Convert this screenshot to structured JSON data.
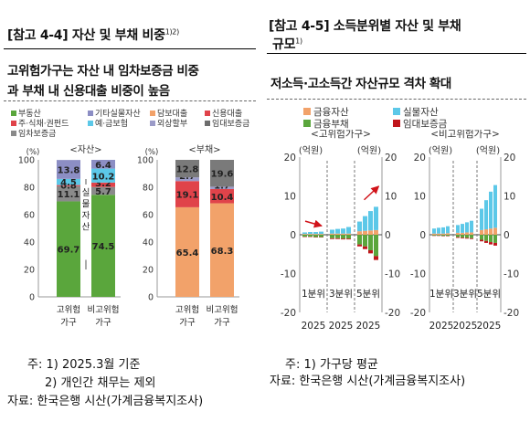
{
  "left": {
    "title_main": "[참고 4-4] 자산 및 부채 비중",
    "title_sup": "1)2)",
    "heading_line1": "고위험가구는 자산 내 임차보증금 비중",
    "heading_line2": "과 부채 내 신용대출 비중이 높음",
    "legend": [
      {
        "label": "부동산",
        "color": "#5aa63c"
      },
      {
        "label": "기타실물자산",
        "color": "#8c8ec4"
      },
      {
        "label": "주·식채·권펀드",
        "color": "#e0434a"
      },
      {
        "label": "예·금보험",
        "color": "#5cc8e8"
      },
      {
        "label": "임차보증금",
        "color": "#8a8a8a"
      },
      {
        "label": "담보대출",
        "color": "#f2a26a"
      },
      {
        "label": "신용대출",
        "color": "#e0434a"
      },
      {
        "label": "외상할부",
        "color": "#9b9bc8"
      },
      {
        "label": "임대보증금",
        "color": "#6d6d6d"
      }
    ],
    "notes": [
      "주: 1) 2025.3월 기준",
      "2) 개인간 채무는 제외",
      "자료: 한국은행 시산(가계금융복지조사)"
    ]
  },
  "right": {
    "title_main": "[참고 4-5] 소득분위별 자산 및 부채",
    "title_line2": "규모",
    "title_sup": "1)",
    "heading": "저소득·고소득간 자산규모 격차 확대",
    "legend": [
      {
        "label": "금융자산",
        "color": "#f2a26a"
      },
      {
        "label": "실물자산",
        "color": "#5cc8e8"
      },
      {
        "label": "금융부채",
        "color": "#5aa63c"
      },
      {
        "label": "임대보증금",
        "color": "#c0151b"
      }
    ],
    "notes": [
      "주: 1) 가구당 평균",
      "자료: 한국은행 시산(가계금융복지조사)"
    ]
  },
  "chart_data": [
    {
      "type": "bar",
      "stacked": true,
      "ylim": [
        0,
        100
      ],
      "yticks": [
        0,
        20,
        40,
        60,
        80,
        100
      ],
      "ylabel": "(%)",
      "group_label": "<자산>",
      "categories": [
        [
          "고위험",
          "가구"
        ],
        [
          "비고위험",
          "가구"
        ]
      ],
      "vertical_label": "실물자산",
      "series": [
        {
          "name": "부동산",
          "color": "#5aa63c",
          "values": [
            69.7,
            74.5
          ]
        },
        {
          "name": "임차보증금",
          "color": "#8a8a8a",
          "values": [
            11.1,
            5.7
          ]
        },
        {
          "name": "주·식채·권펀드",
          "color": "#e0434a",
          "values": [
            0.8,
            3.2
          ]
        },
        {
          "name": "예·금보험",
          "color": "#5cc8e8",
          "values": [
            4.5,
            10.2
          ]
        },
        {
          "name": "기타실물자산",
          "color": "#8c8ec4",
          "values": [
            13.8,
            6.4
          ]
        }
      ],
      "value_labels": [
        [
          "69.7",
          "11.1",
          "0.8",
          "4.5",
          "13.8"
        ],
        [
          "74.5",
          "5.7",
          "3.2",
          "10.2",
          "6.4"
        ]
      ]
    },
    {
      "type": "bar",
      "stacked": true,
      "ylim": [
        0,
        100
      ],
      "yticks": [
        0,
        20,
        40,
        60,
        80,
        100
      ],
      "ylabel": "(%)",
      "group_label": "<부채>",
      "categories": [
        [
          "고위험",
          "가구"
        ],
        [
          "비고위험",
          "가구"
        ]
      ],
      "series": [
        {
          "name": "담보대출",
          "color": "#f2a26a",
          "values": [
            65.4,
            68.3
          ]
        },
        {
          "name": "신용대출",
          "color": "#e0434a",
          "values": [
            19.1,
            10.4
          ]
        },
        {
          "name": "외상할부",
          "color": "#9b9bc8",
          "values": [
            2.7,
            1.7
          ]
        },
        {
          "name": "임대보증금",
          "color": "#7a7a7a",
          "values": [
            12.8,
            19.6
          ]
        }
      ],
      "value_labels": [
        [
          "65.4",
          "19.1",
          "2.7",
          "12.8"
        ],
        [
          "68.3",
          "10.4",
          "1.7",
          "19.6"
        ]
      ]
    },
    {
      "type": "bar",
      "stacked": true,
      "group_label": "<고위험가구>",
      "ylabel_left": "(억원)",
      "ylabel_right": "(억원)",
      "ylim": [
        -20,
        20
      ],
      "yticks": [
        -20,
        -10,
        0,
        10,
        20
      ],
      "right_ticks": [
        "20",
        "10",
        "0",
        "-10",
        "-20"
      ],
      "quintile_labels": [
        "1분위",
        "3분위",
        "5분위"
      ],
      "year_labels": [
        "2025",
        "2025",
        "2025"
      ],
      "arrows": true,
      "quintiles": [
        {
          "name": "1분위",
          "financial_assets": [
            0.2,
            0.2,
            0.2,
            0.2
          ],
          "real_assets": [
            0.4,
            0.5,
            0.5,
            0.6
          ],
          "financial_debt": [
            -0.5,
            -0.5,
            -0.6,
            -0.6
          ],
          "rental_deposit": [
            -0.1,
            -0.1,
            -0.1,
            -0.1
          ]
        },
        {
          "name": "3분위",
          "financial_assets": [
            0.3,
            0.3,
            0.3,
            0.3
          ],
          "real_assets": [
            1.0,
            1.2,
            1.3,
            1.7
          ],
          "financial_debt": [
            -0.9,
            -0.9,
            -1.0,
            -1.0
          ],
          "rental_deposit": [
            -0.2,
            -0.2,
            -0.2,
            -0.2
          ]
        },
        {
          "name": "5분위",
          "financial_assets": [
            0.9,
            1.0,
            1.1,
            1.2
          ],
          "real_assets": [
            2.5,
            3.8,
            5.0,
            6.0
          ],
          "financial_debt": [
            -2.5,
            -3.0,
            -4.0,
            -5.5
          ],
          "rental_deposit": [
            -0.5,
            -0.7,
            -0.8,
            -1.0
          ]
        }
      ]
    },
    {
      "type": "bar",
      "stacked": true,
      "group_label": "<비고위험가구>",
      "ylabel_left": "(억원)",
      "ylabel_right": "(억원)",
      "ylim": [
        -20,
        20
      ],
      "yticks": [
        -20,
        -10,
        0,
        10,
        20
      ],
      "right_ticks": [
        "20",
        "10",
        "0",
        "-10",
        "-20"
      ],
      "quintile_labels": [
        "1분위",
        "3분위",
        "5분위"
      ],
      "year_labels": [
        "2025",
        "2025",
        "2025"
      ],
      "quintiles": [
        {
          "name": "1분위",
          "financial_assets": [
            0.3,
            0.3,
            0.3,
            0.4
          ],
          "real_assets": [
            1.3,
            1.5,
            1.6,
            1.8
          ],
          "financial_debt": [
            -0.2,
            -0.2,
            -0.3,
            -0.3
          ],
          "rental_deposit": [
            -0.1,
            -0.1,
            -0.1,
            -0.1
          ]
        },
        {
          "name": "3분위",
          "financial_assets": [
            0.5,
            0.5,
            0.6,
            0.6
          ],
          "real_assets": [
            2.0,
            2.3,
            2.6,
            3.0
          ],
          "financial_debt": [
            -0.6,
            -0.7,
            -0.8,
            -0.9
          ],
          "rental_deposit": [
            -0.2,
            -0.2,
            -0.2,
            -0.2
          ]
        },
        {
          "name": "5분위",
          "financial_assets": [
            1.2,
            1.4,
            1.6,
            1.8
          ],
          "real_assets": [
            5.5,
            7.5,
            9.5,
            11.0
          ],
          "financial_debt": [
            -1.3,
            -1.6,
            -1.9,
            -2.1
          ],
          "rental_deposit": [
            -0.4,
            -0.5,
            -0.6,
            -0.7
          ]
        }
      ]
    }
  ]
}
